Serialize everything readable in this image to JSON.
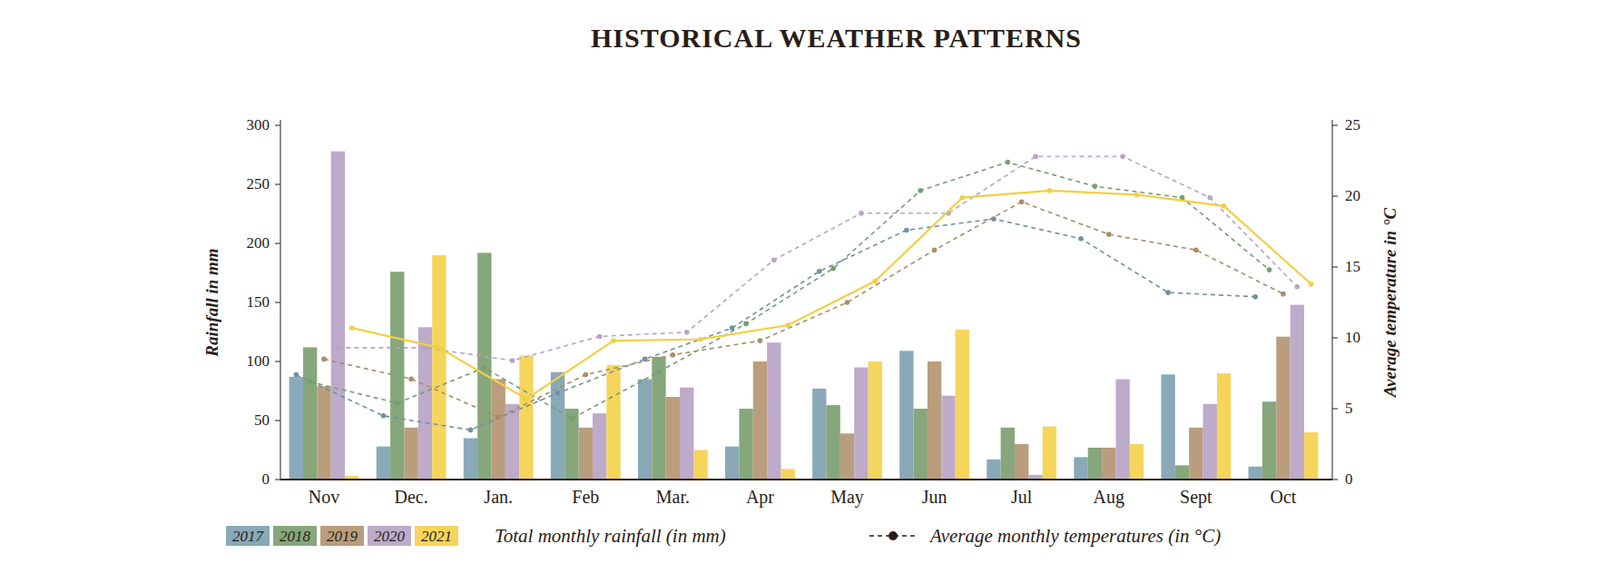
{
  "chart_data": {
    "type": "bar",
    "title": "HISTORICAL WEATHER PATTERNS",
    "y_label": "Rainfall in mm",
    "y2_label": "Average temperature in °C",
    "annotations": [
      "Total monthly rainfall (in mm)",
      "Average monthly temperatures (in °C)"
    ],
    "categories": [
      "Nov",
      "Dec.",
      "Jan.",
      "Feb",
      "Mar.",
      "Apr",
      "May",
      "Jun",
      "Jul",
      "Aug",
      "Sept",
      "Oct"
    ],
    "ylim": [
      0,
      300
    ],
    "yticks": [
      0,
      50,
      100,
      150,
      200,
      250,
      300
    ],
    "y2lim": [
      0,
      25
    ],
    "y2ticks": [
      0,
      5,
      10,
      15,
      20,
      25
    ],
    "grid": false,
    "legend": "bottom",
    "series": [
      {
        "name": "2017",
        "type": "bar",
        "color": "#89a9b8",
        "values": [
          87,
          28,
          35,
          91,
          85,
          28,
          77,
          109,
          17,
          19,
          89,
          11
        ]
      },
      {
        "name": "2018",
        "type": "bar",
        "color": "#86a77b",
        "values": [
          112,
          176,
          192,
          60,
          104,
          60,
          63,
          60,
          44,
          27,
          12,
          66
        ]
      },
      {
        "name": "2019",
        "type": "bar",
        "color": "#b99d7d",
        "values": [
          79,
          44,
          85,
          44,
          70,
          100,
          39,
          100,
          30,
          27,
          44,
          121
        ]
      },
      {
        "name": "2020",
        "type": "bar",
        "color": "#bdabc9",
        "values": [
          278,
          129,
          64,
          56,
          78,
          116,
          95,
          71,
          4,
          85,
          64,
          148
        ]
      },
      {
        "name": "2021",
        "type": "bar",
        "color": "#f6d55c",
        "values": [
          3,
          190,
          105,
          97,
          25,
          9,
          100,
          127,
          45,
          30,
          90,
          40
        ]
      },
      {
        "type": "line",
        "axis": "y2",
        "line_style": "dashed",
        "marker": "circle",
        "color": "#6e93a3",
        "values": [
          7.4,
          4.5,
          3.5,
          6.1,
          8.5,
          10.7,
          14.7,
          17.6,
          18.4,
          17.0,
          13.2,
          12.9
        ]
      },
      {
        "type": "line",
        "axis": "y2",
        "line_style": "dashed",
        "marker": "circle",
        "color": "#74a070",
        "values": [
          6.9,
          5.4,
          7.9,
          4.3,
          7.6,
          11.0,
          14.9,
          20.4,
          22.4,
          20.7,
          19.9,
          14.8
        ]
      },
      {
        "type": "line",
        "axis": "y2",
        "line_style": "dashed",
        "marker": "circle",
        "color": "#ab8d66",
        "values": [
          8.5,
          7.1,
          4.4,
          7.4,
          8.8,
          9.8,
          12.5,
          16.2,
          19.6,
          17.3,
          16.2,
          13.1
        ]
      },
      {
        "type": "line",
        "axis": "y2",
        "line_style": "dashed",
        "marker": "circle",
        "color": "#b7a3ca",
        "values": [
          9.3,
          9.3,
          8.4,
          10.1,
          10.4,
          15.5,
          18.8,
          18.8,
          22.8,
          22.8,
          19.9,
          13.6
        ]
      },
      {
        "type": "line",
        "axis": "y2",
        "line_style": "solid",
        "marker": "circle",
        "color": "#f1cf45",
        "values": [
          10.7,
          9.3,
          5.7,
          9.8,
          9.9,
          10.9,
          14.0,
          19.9,
          20.4,
          20.1,
          19.3,
          13.8
        ]
      }
    ]
  }
}
